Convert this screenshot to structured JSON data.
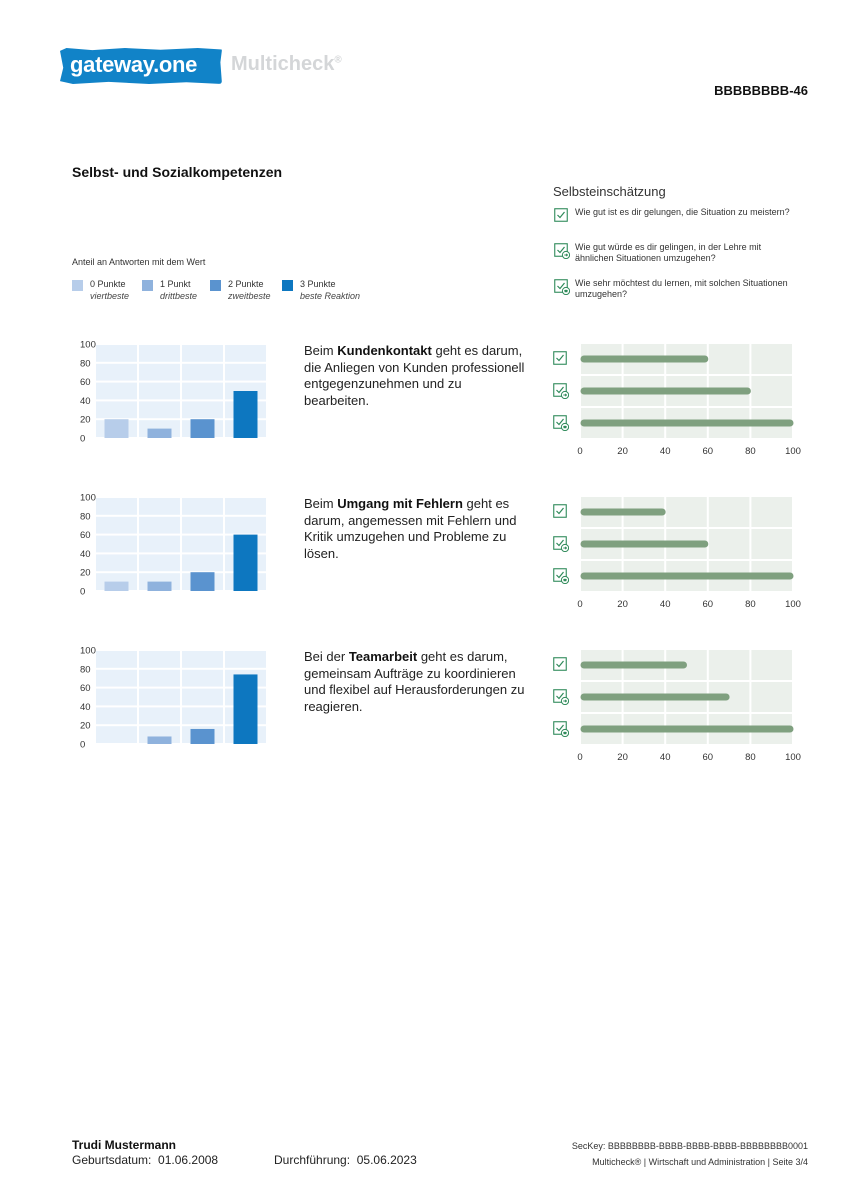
{
  "header": {
    "logo_text": "gateway.one",
    "product": "Multicheck",
    "product_mark": "®",
    "code": "BBBBBBBB-46"
  },
  "section_title": "Selbst- und Sozialkompetenzen",
  "legend": {
    "title": "Anteil an Antworten mit dem Wert",
    "items": [
      {
        "label": "0 Punkte",
        "sub": "viertbeste",
        "color": "#b7cdea"
      },
      {
        "label": "1 Punkt",
        "sub": "drittbeste",
        "color": "#8fb2dd"
      },
      {
        "label": "2 Punkte",
        "sub": "zweitbeste",
        "color": "#5a93cf"
      },
      {
        "label": "3 Punkte",
        "sub": "beste Reaktion",
        "color": "#0d77c0"
      }
    ]
  },
  "self_assessment": {
    "title": "Selbsteinschätzung",
    "questions": [
      {
        "text": "Wie gut ist es dir gelungen, die Situation zu meistern?",
        "icon": "check-icon"
      },
      {
        "text": "Wie gut würde es dir gelingen, in der Lehre mit ähnlichen Situationen umzugehen?",
        "icon": "check-arrow-icon"
      },
      {
        "text": "Wie sehr möchtest du lernen, mit solchen Situationen umzugehen?",
        "icon": "check-heart-icon"
      }
    ]
  },
  "competencies": [
    {
      "text_pre": "Beim ",
      "keyword": "Kundenkontakt",
      "text_post": " geht es darum, die Anliegen von Kunden professionell entgegenzunehmen und zu bearbeiten."
    },
    {
      "text_pre": "Beim ",
      "keyword": "Umgang mit Fehlern",
      "text_post": " geht es darum, angemessen mit Fehlern und Kritik umzugehen und Probleme zu lösen."
    },
    {
      "text_pre": "Bei der ",
      "keyword": "Teamarbeit",
      "text_post": " geht es darum, gemeinsam Aufträge zu koordinieren und flexibel auf Herausforderungen zu reagieren."
    }
  ],
  "chart_data": [
    {
      "type": "bar",
      "categories": [
        "0 Punkte",
        "1 Punkt",
        "2 Punkte",
        "3 Punkte"
      ],
      "values": [
        20,
        10,
        20,
        50
      ],
      "ylim": [
        0,
        100
      ],
      "yticks": [
        "0",
        "20",
        "40",
        "60",
        "80",
        "100"
      ]
    },
    {
      "type": "bar",
      "categories": [
        "0 Punkte",
        "1 Punkt",
        "2 Punkte",
        "3 Punkte"
      ],
      "values": [
        10,
        10,
        20,
        60
      ],
      "ylim": [
        0,
        100
      ],
      "yticks": [
        "0",
        "20",
        "40",
        "60",
        "80",
        "100"
      ]
    },
    {
      "type": "bar",
      "categories": [
        "0 Punkte",
        "1 Punkt",
        "2 Punkte",
        "3 Punkte"
      ],
      "values": [
        0,
        8,
        16,
        74
      ],
      "ylim": [
        0,
        100
      ],
      "yticks": [
        "0",
        "20",
        "40",
        "60",
        "80",
        "100"
      ]
    },
    {
      "type": "bar",
      "orientation": "horizontal",
      "values": [
        60,
        80,
        100
      ],
      "xlim": [
        0,
        100
      ],
      "xticks": [
        "0",
        "20",
        "40",
        "60",
        "80",
        "100"
      ]
    },
    {
      "type": "bar",
      "orientation": "horizontal",
      "values": [
        40,
        60,
        100
      ],
      "xlim": [
        0,
        100
      ],
      "xticks": [
        "0",
        "20",
        "40",
        "60",
        "80",
        "100"
      ]
    },
    {
      "type": "bar",
      "orientation": "horizontal",
      "values": [
        50,
        70,
        100
      ],
      "xlim": [
        0,
        100
      ],
      "xticks": [
        "0",
        "20",
        "40",
        "60",
        "80",
        "100"
      ]
    }
  ],
  "colors": {
    "grid_bg": "#e8f1fa",
    "hgrid_bg": "#ebf0eb",
    "hbar": "#7fa07f",
    "icon": "#2f8a5a"
  },
  "footer": {
    "name": "Trudi Mustermann",
    "birth_label": "Geburtsdatum:",
    "birth_value": "01.06.2008",
    "exec_label": "Durchführung:",
    "exec_value": "05.06.2023",
    "seckey": "SecKey:  BBBBBBBB-BBBB-BBBB-BBBB-BBBBBBBB0001",
    "meta": "Multicheck®  |  Wirtschaft und Administration  |  Seite 3/4"
  }
}
